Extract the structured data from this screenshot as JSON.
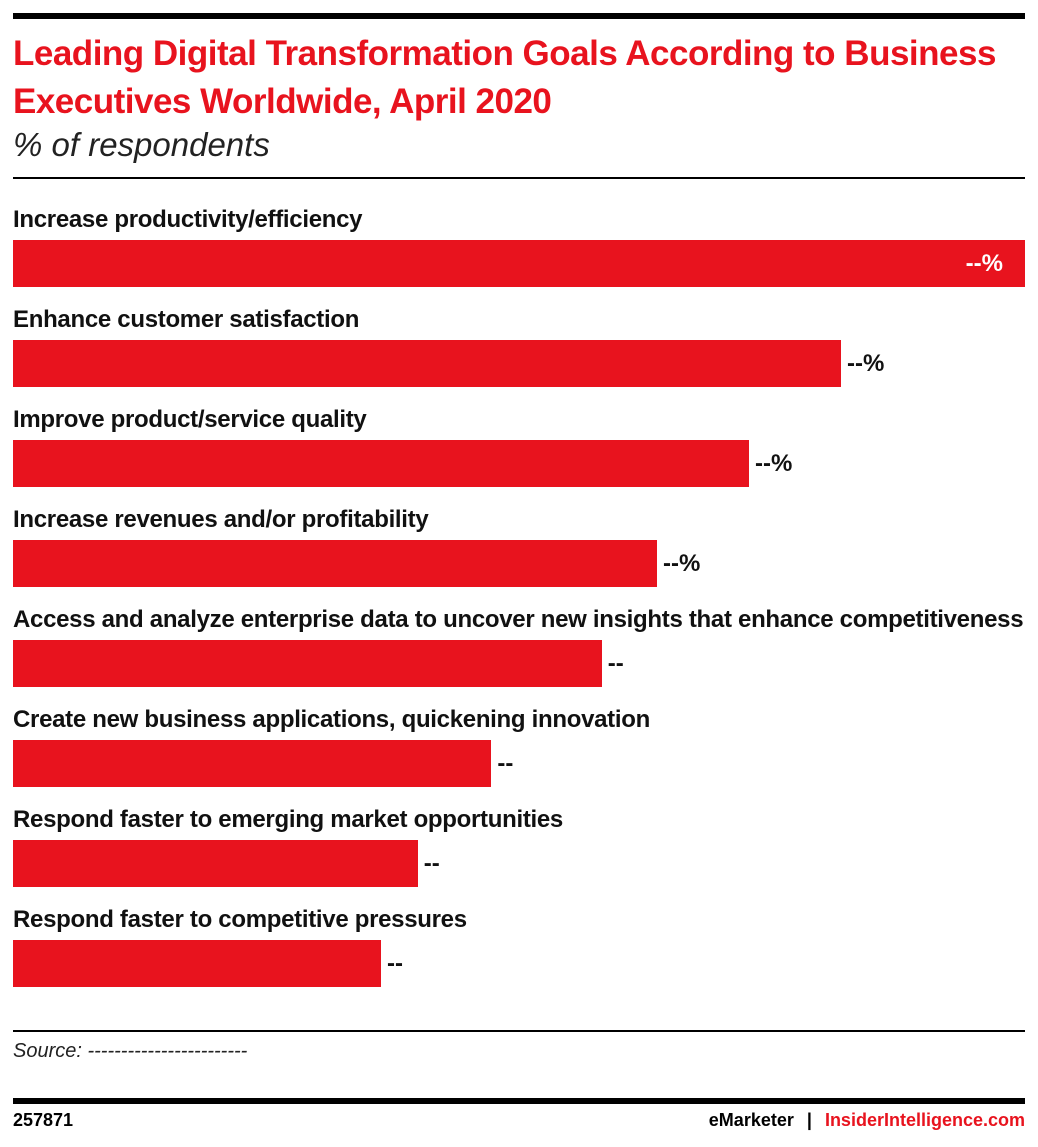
{
  "chart_data": {
    "type": "bar",
    "orientation": "horizontal",
    "title": "Leading Digital Transformation Goals According to Business Executives Worldwide, April 2020",
    "subtitle": "% of respondents",
    "categories": [
      "Increase productivity/efficiency",
      "Enhance customer satisfaction",
      "Improve product/service quality",
      "Increase revenues and/or profitability",
      "Access and analyze enterprise data to uncover new insights that enhance competitiveness",
      "Create new business applications, quickening innovation",
      "Respond faster to emerging market opportunities",
      "Respond faster to competitive pressures"
    ],
    "values": [
      55,
      45,
      40,
      35,
      32,
      26,
      22,
      20
    ],
    "value_labels": [
      "--%",
      "--%",
      "--%",
      "--%",
      "--",
      "--",
      "--",
      "--"
    ],
    "color": "#e8131e",
    "source": "Source: ------------------------",
    "chart_id": "257871",
    "brands": [
      "eMarketer",
      "|",
      "InsiderIntelligence.com"
    ]
  }
}
